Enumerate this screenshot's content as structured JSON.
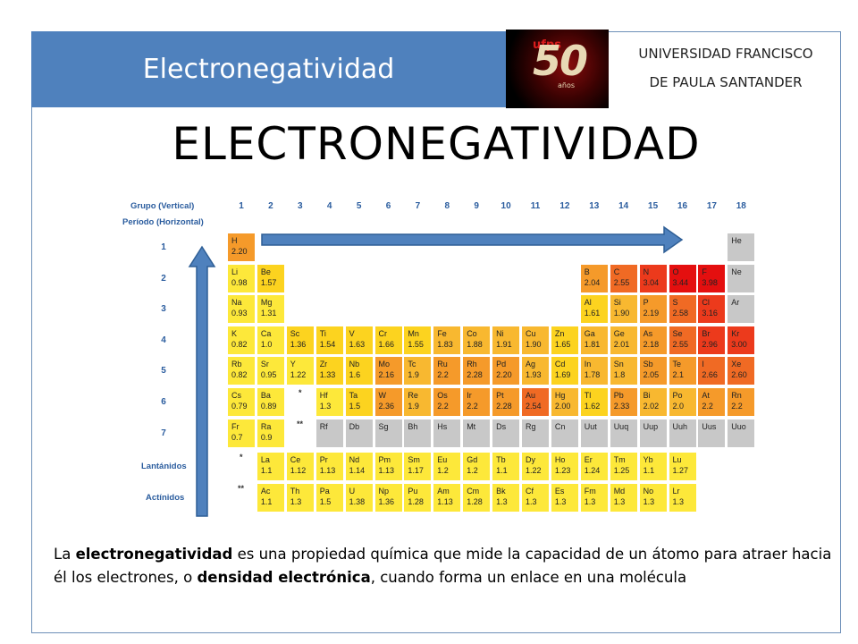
{
  "header": {
    "title": "Electronegatividad",
    "university_line1": "UNIVERSIDAD FRANCISCO",
    "university_line2": "DE PAULA SANTANDER",
    "logo_big": "50",
    "logo_small": "ufps",
    "logo_sub": "años"
  },
  "main_title": "ELECTRONEGATIVIDAD",
  "table": {
    "group_label": "Grupo (Vertical)",
    "period_label": "Período (Horizontal)",
    "lanthanides_label": "Lantánidos",
    "actinides_label": "Actínidos",
    "groups": [
      "1",
      "2",
      "3",
      "4",
      "5",
      "6",
      "7",
      "8",
      "9",
      "10",
      "11",
      "12",
      "13",
      "14",
      "15",
      "16",
      "17",
      "18"
    ],
    "periods": [
      "1",
      "2",
      "3",
      "4",
      "5",
      "6",
      "7"
    ],
    "star1": "*",
    "star2": "**",
    "elements": [
      {
        "s": "H",
        "v": "2.20",
        "g": 1,
        "p": 1,
        "c": 4
      },
      {
        "s": "He",
        "v": "",
        "g": 18,
        "p": 1,
        "c": 0
      },
      {
        "s": "Li",
        "v": "0.98",
        "g": 1,
        "p": 2,
        "c": 1
      },
      {
        "s": "Be",
        "v": "1.57",
        "g": 2,
        "p": 2,
        "c": 2
      },
      {
        "s": "B",
        "v": "2.04",
        "g": 13,
        "p": 2,
        "c": 4
      },
      {
        "s": "C",
        "v": "2.55",
        "g": 14,
        "p": 2,
        "c": 5
      },
      {
        "s": "N",
        "v": "3.04",
        "g": 15,
        "p": 2,
        "c": 6
      },
      {
        "s": "O",
        "v": "3.44",
        "g": 16,
        "p": 2,
        "c": 7
      },
      {
        "s": "F",
        "v": "3.98",
        "g": 17,
        "p": 2,
        "c": 7
      },
      {
        "s": "Ne",
        "v": "",
        "g": 18,
        "p": 2,
        "c": 0
      },
      {
        "s": "Na",
        "v": "0.93",
        "g": 1,
        "p": 3,
        "c": 1
      },
      {
        "s": "Mg",
        "v": "1.31",
        "g": 2,
        "p": 3,
        "c": 1
      },
      {
        "s": "Al",
        "v": "1.61",
        "g": 13,
        "p": 3,
        "c": 2
      },
      {
        "s": "Si",
        "v": "1.90",
        "g": 14,
        "p": 3,
        "c": 3
      },
      {
        "s": "P",
        "v": "2.19",
        "g": 15,
        "p": 3,
        "c": 4
      },
      {
        "s": "S",
        "v": "2.58",
        "g": 16,
        "p": 3,
        "c": 5
      },
      {
        "s": "Cl",
        "v": "3.16",
        "g": 17,
        "p": 3,
        "c": 6
      },
      {
        "s": "Ar",
        "v": "",
        "g": 18,
        "p": 3,
        "c": 0
      },
      {
        "s": "K",
        "v": "0.82",
        "g": 1,
        "p": 4,
        "c": 1
      },
      {
        "s": "Ca",
        "v": "1.0",
        "g": 2,
        "p": 4,
        "c": 1
      },
      {
        "s": "Sc",
        "v": "1.36",
        "g": 3,
        "p": 4,
        "c": 2
      },
      {
        "s": "Ti",
        "v": "1.54",
        "g": 4,
        "p": 4,
        "c": 2
      },
      {
        "s": "V",
        "v": "1.63",
        "g": 5,
        "p": 4,
        "c": 2
      },
      {
        "s": "Cr",
        "v": "1.66",
        "g": 6,
        "p": 4,
        "c": 2
      },
      {
        "s": "Mn",
        "v": "1.55",
        "g": 7,
        "p": 4,
        "c": 2
      },
      {
        "s": "Fe",
        "v": "1.83",
        "g": 8,
        "p": 4,
        "c": 3
      },
      {
        "s": "Co",
        "v": "1.88",
        "g": 9,
        "p": 4,
        "c": 3
      },
      {
        "s": "Ni",
        "v": "1.91",
        "g": 10,
        "p": 4,
        "c": 3
      },
      {
        "s": "Cu",
        "v": "1.90",
        "g": 11,
        "p": 4,
        "c": 3
      },
      {
        "s": "Zn",
        "v": "1.65",
        "g": 12,
        "p": 4,
        "c": 2
      },
      {
        "s": "Ga",
        "v": "1.81",
        "g": 13,
        "p": 4,
        "c": 3
      },
      {
        "s": "Ge",
        "v": "2.01",
        "g": 14,
        "p": 4,
        "c": 3
      },
      {
        "s": "As",
        "v": "2.18",
        "g": 15,
        "p": 4,
        "c": 4
      },
      {
        "s": "Se",
        "v": "2.55",
        "g": 16,
        "p": 4,
        "c": 5
      },
      {
        "s": "Br",
        "v": "2.96",
        "g": 17,
        "p": 4,
        "c": 6
      },
      {
        "s": "Kr",
        "v": "3.00",
        "g": 18,
        "p": 4,
        "c": 6
      },
      {
        "s": "Rb",
        "v": "0.82",
        "g": 1,
        "p": 5,
        "c": 1
      },
      {
        "s": "Sr",
        "v": "0.95",
        "g": 2,
        "p": 5,
        "c": 1
      },
      {
        "s": "Y",
        "v": "1.22",
        "g": 3,
        "p": 5,
        "c": 1
      },
      {
        "s": "Zr",
        "v": "1.33",
        "g": 4,
        "p": 5,
        "c": 2
      },
      {
        "s": "Nb",
        "v": "1.6",
        "g": 5,
        "p": 5,
        "c": 2
      },
      {
        "s": "Mo",
        "v": "2.16",
        "g": 6,
        "p": 5,
        "c": 4
      },
      {
        "s": "Tc",
        "v": "1.9",
        "g": 7,
        "p": 5,
        "c": 3
      },
      {
        "s": "Ru",
        "v": "2.2",
        "g": 8,
        "p": 5,
        "c": 4
      },
      {
        "s": "Rh",
        "v": "2.28",
        "g": 9,
        "p": 5,
        "c": 4
      },
      {
        "s": "Pd",
        "v": "2.20",
        "g": 10,
        "p": 5,
        "c": 4
      },
      {
        "s": "Ag",
        "v": "1.93",
        "g": 11,
        "p": 5,
        "c": 3
      },
      {
        "s": "Cd",
        "v": "1.69",
        "g": 12,
        "p": 5,
        "c": 2
      },
      {
        "s": "In",
        "v": "1.78",
        "g": 13,
        "p": 5,
        "c": 3
      },
      {
        "s": "Sn",
        "v": "1.8",
        "g": 14,
        "p": 5,
        "c": 3
      },
      {
        "s": "Sb",
        "v": "2.05",
        "g": 15,
        "p": 5,
        "c": 4
      },
      {
        "s": "Te",
        "v": "2.1",
        "g": 16,
        "p": 5,
        "c": 4
      },
      {
        "s": "I",
        "v": "2.66",
        "g": 17,
        "p": 5,
        "c": 5
      },
      {
        "s": "Xe",
        "v": "2.60",
        "g": 18,
        "p": 5,
        "c": 5
      },
      {
        "s": "Cs",
        "v": "0.79",
        "g": 1,
        "p": 6,
        "c": 1
      },
      {
        "s": "Ba",
        "v": "0.89",
        "g": 2,
        "p": 6,
        "c": 1
      },
      {
        "s": "Hf",
        "v": "1.3",
        "g": 4,
        "p": 6,
        "c": 1
      },
      {
        "s": "Ta",
        "v": "1.5",
        "g": 5,
        "p": 6,
        "c": 2
      },
      {
        "s": "W",
        "v": "2.36",
        "g": 6,
        "p": 6,
        "c": 4
      },
      {
        "s": "Re",
        "v": "1.9",
        "g": 7,
        "p": 6,
        "c": 3
      },
      {
        "s": "Os",
        "v": "2.2",
        "g": 8,
        "p": 6,
        "c": 4
      },
      {
        "s": "Ir",
        "v": "2.2",
        "g": 9,
        "p": 6,
        "c": 4
      },
      {
        "s": "Pt",
        "v": "2.28",
        "g": 10,
        "p": 6,
        "c": 4
      },
      {
        "s": "Au",
        "v": "2.54",
        "g": 11,
        "p": 6,
        "c": 5
      },
      {
        "s": "Hg",
        "v": "2.00",
        "g": 12,
        "p": 6,
        "c": 3
      },
      {
        "s": "Tl",
        "v": "1.62",
        "g": 13,
        "p": 6,
        "c": 2
      },
      {
        "s": "Pb",
        "v": "2.33",
        "g": 14,
        "p": 6,
        "c": 4
      },
      {
        "s": "Bi",
        "v": "2.02",
        "g": 15,
        "p": 6,
        "c": 3
      },
      {
        "s": "Po",
        "v": "2.0",
        "g": 16,
        "p": 6,
        "c": 3
      },
      {
        "s": "At",
        "v": "2.2",
        "g": 17,
        "p": 6,
        "c": 4
      },
      {
        "s": "Rn",
        "v": "2.2",
        "g": 18,
        "p": 6,
        "c": 4
      },
      {
        "s": "Fr",
        "v": "0.7",
        "g": 1,
        "p": 7,
        "c": 1
      },
      {
        "s": "Ra",
        "v": "0.9",
        "g": 2,
        "p": 7,
        "c": 1
      },
      {
        "s": "Rf",
        "v": "",
        "g": 4,
        "p": 7,
        "c": 0
      },
      {
        "s": "Db",
        "v": "",
        "g": 5,
        "p": 7,
        "c": 0
      },
      {
        "s": "Sg",
        "v": "",
        "g": 6,
        "p": 7,
        "c": 0
      },
      {
        "s": "Bh",
        "v": "",
        "g": 7,
        "p": 7,
        "c": 0
      },
      {
        "s": "Hs",
        "v": "",
        "g": 8,
        "p": 7,
        "c": 0
      },
      {
        "s": "Mt",
        "v": "",
        "g": 9,
        "p": 7,
        "c": 0
      },
      {
        "s": "Ds",
        "v": "",
        "g": 10,
        "p": 7,
        "c": 0
      },
      {
        "s": "Rg",
        "v": "",
        "g": 11,
        "p": 7,
        "c": 0
      },
      {
        "s": "Cn",
        "v": "",
        "g": 12,
        "p": 7,
        "c": 0
      },
      {
        "s": "Uut",
        "v": "",
        "g": 13,
        "p": 7,
        "c": 0
      },
      {
        "s": "Uuq",
        "v": "",
        "g": 14,
        "p": 7,
        "c": 0
      },
      {
        "s": "Uup",
        "v": "",
        "g": 15,
        "p": 7,
        "c": 0
      },
      {
        "s": "Uuh",
        "v": "",
        "g": 16,
        "p": 7,
        "c": 0
      },
      {
        "s": "Uus",
        "v": "",
        "g": 17,
        "p": 7,
        "c": 0
      },
      {
        "s": "Uuo",
        "v": "",
        "g": 18,
        "p": 7,
        "c": 0
      }
    ],
    "lanthanides": [
      {
        "s": "La",
        "v": "1.1"
      },
      {
        "s": "Ce",
        "v": "1.12"
      },
      {
        "s": "Pr",
        "v": "1.13"
      },
      {
        "s": "Nd",
        "v": "1.14"
      },
      {
        "s": "Pm",
        "v": "1.13"
      },
      {
        "s": "Sm",
        "v": "1.17"
      },
      {
        "s": "Eu",
        "v": "1.2"
      },
      {
        "s": "Gd",
        "v": "1.2"
      },
      {
        "s": "Tb",
        "v": "1.1"
      },
      {
        "s": "Dy",
        "v": "1.22"
      },
      {
        "s": "Ho",
        "v": "1.23"
      },
      {
        "s": "Er",
        "v": "1.24"
      },
      {
        "s": "Tm",
        "v": "1.25"
      },
      {
        "s": "Yb",
        "v": "1.1"
      },
      {
        "s": "Lu",
        "v": "1.27"
      }
    ],
    "actinides": [
      {
        "s": "Ac",
        "v": "1.1"
      },
      {
        "s": "Th",
        "v": "1.3"
      },
      {
        "s": "Pa",
        "v": "1.5"
      },
      {
        "s": "U",
        "v": "1.38"
      },
      {
        "s": "Np",
        "v": "1.36"
      },
      {
        "s": "Pu",
        "v": "1.28"
      },
      {
        "s": "Am",
        "v": "1.13"
      },
      {
        "s": "Cm",
        "v": "1.28"
      },
      {
        "s": "Bk",
        "v": "1.3"
      },
      {
        "s": "Cf",
        "v": "1.3"
      },
      {
        "s": "Es",
        "v": "1.3"
      },
      {
        "s": "Fm",
        "v": "1.3"
      },
      {
        "s": "Md",
        "v": "1.3"
      },
      {
        "s": "No",
        "v": "1.3"
      },
      {
        "s": "Lr",
        "v": "1.3"
      }
    ],
    "colors": [
      "#c8c8c8",
      "#fde83a",
      "#fcd31f",
      "#f8b830",
      "#f59a2a",
      "#f06a24",
      "#ec3a1c",
      "#e40f0f"
    ],
    "arrow_color": "#4f81bd"
  },
  "paragraph": {
    "part1": "La ",
    "bold1": "electronegatividad",
    "part2": " es una propiedad química que mide la capacidad de un átomo para atraer hacia él los electrones, o ",
    "bold2": "densidad electrónica",
    "part3": ", cuando forma un enlace en una molécula"
  }
}
